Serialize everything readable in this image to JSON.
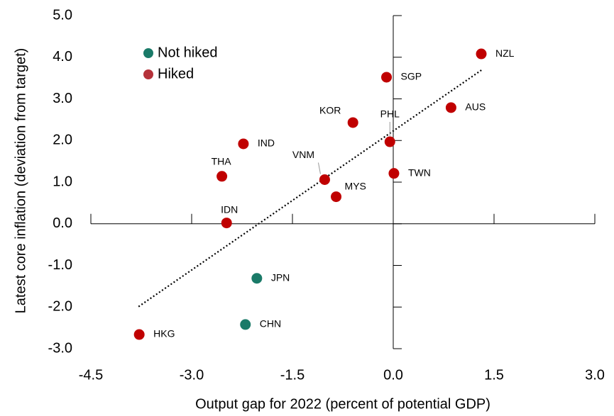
{
  "chart_data": {
    "type": "scatter",
    "x_label": "Output gap for 2022 (percent of potential GDP)",
    "y_label": "Latest core inflation (deviation from target)",
    "xlim": [
      -4.5,
      3.0
    ],
    "ylim": [
      -3.0,
      5.0
    ],
    "xticks": [
      {
        "value": -4.5,
        "label": "-4.5"
      },
      {
        "value": -3.0,
        "label": "-3.0"
      },
      {
        "value": -1.5,
        "label": "-1.5"
      },
      {
        "value": 0.0,
        "label": "0.0"
      },
      {
        "value": 1.5,
        "label": "1.5"
      },
      {
        "value": 3.0,
        "label": "3.0"
      }
    ],
    "yticks": [
      {
        "value": -3.0,
        "label": "-3.0"
      },
      {
        "value": -2.0,
        "label": "-2.0"
      },
      {
        "value": -1.0,
        "label": "-1.0"
      },
      {
        "value": 0.0,
        "label": "0.0"
      },
      {
        "value": 1.0,
        "label": "1.0"
      },
      {
        "value": 2.0,
        "label": "2.0"
      },
      {
        "value": 3.0,
        "label": "3.0"
      },
      {
        "value": 4.0,
        "label": "4.0"
      },
      {
        "value": 5.0,
        "label": "5.0"
      }
    ],
    "series": [
      {
        "name": "Not hiked",
        "color": "#1a7a68",
        "labels": [
          "JPN",
          "CHN"
        ],
        "x": [
          -2.03,
          -2.2
        ],
        "values": [
          -1.31,
          -2.42
        ]
      },
      {
        "name": "Hiked",
        "color": "#c00000",
        "labels": [
          "NZL",
          "SGP",
          "AUS",
          "KOR",
          "PHL",
          "IND",
          "THA",
          "VNM",
          "TWN",
          "MYS",
          "IDN",
          "HKG"
        ],
        "x": [
          1.31,
          -0.1,
          0.86,
          -0.6,
          -0.05,
          -2.23,
          -2.55,
          -1.02,
          0.01,
          -0.85,
          -2.48,
          -3.78
        ],
        "values": [
          4.08,
          3.52,
          2.79,
          2.43,
          1.97,
          1.92,
          1.14,
          1.06,
          1.21,
          0.65,
          0.02,
          -2.66
        ]
      }
    ],
    "legend_colors": [
      "#1a7a68",
      "#b5323a"
    ],
    "trendline": {
      "x": [
        -3.79,
        1.33
      ],
      "y": [
        -1.99,
        3.71
      ]
    }
  }
}
